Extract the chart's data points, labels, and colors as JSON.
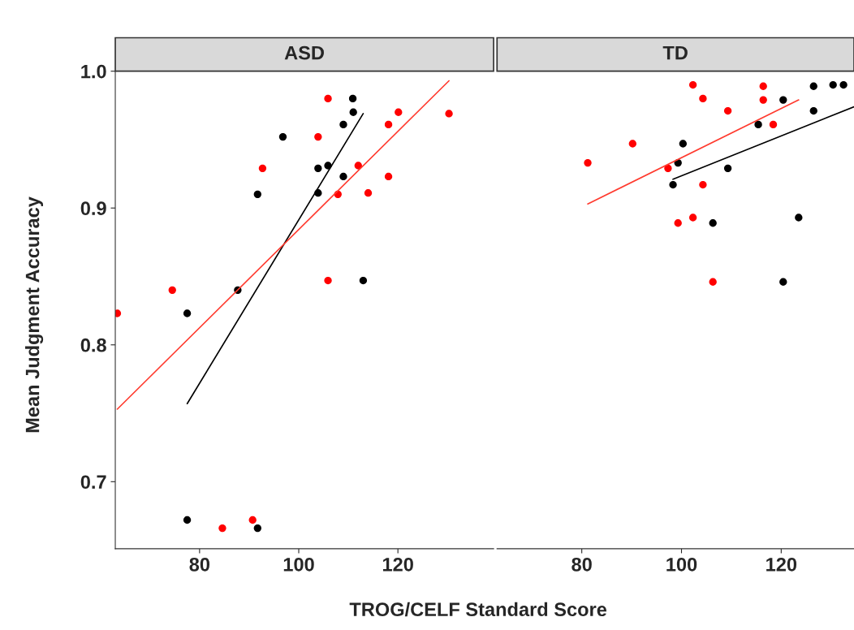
{
  "chart_data": [
    {
      "type": "scatter",
      "title": "ASD",
      "ylabel": "Mean Judgment Accuracy",
      "xlabel": "TROG/CELF Standard Score",
      "xlim": [
        63,
        139.3
      ],
      "ylim": [
        0.651,
        1.0
      ],
      "xticks": [
        80,
        100,
        120
      ],
      "yticks": [
        0.7,
        0.8,
        0.9,
        {
          "value": 1.0,
          "label": "1.0"
        }
      ],
      "grid": false,
      "legend": false,
      "series": [
        {
          "color": "#000000",
          "marker": "circle",
          "x": [
            110.9,
            111,
            109,
            96.8,
            103.9,
            105.9,
            109,
            91.7,
            103.9,
            113,
            87.7,
            77.5,
            77.5,
            91.7
          ],
          "values": [
            0.98,
            0.97,
            0.961,
            0.952,
            0.929,
            0.931,
            0.923,
            0.91,
            0.911,
            0.847,
            0.84,
            0.823,
            0.672,
            0.666
          ]
        },
        {
          "color": "#ff0000",
          "marker": "circle",
          "x": [
            105.9,
            120.1,
            130.3,
            118.1,
            103.9,
            92.7,
            112,
            118.1,
            107.9,
            114,
            105.9,
            74.5,
            63.4,
            84.6,
            90.7
          ],
          "values": [
            0.98,
            0.97,
            0.969,
            0.961,
            0.952,
            0.929,
            0.931,
            0.923,
            0.91,
            0.911,
            0.847,
            0.84,
            0.823,
            0.666,
            0.672
          ]
        },
        {
          "type": "line",
          "color": "#000000",
          "x": [
            77.5,
            113
          ],
          "values": [
            0.757,
            0.969
          ]
        },
        {
          "type": "line",
          "color": "#ff3b2f",
          "x": [
            63.4,
            130.3
          ],
          "values": [
            0.753,
            0.993
          ]
        }
      ]
    },
    {
      "type": "scatter",
      "title": "TD",
      "xlim": [
        63,
        134.6
      ],
      "ylim": [
        0.651,
        1.0
      ],
      "xticks": [
        80,
        100,
        120
      ],
      "tick_labels": "x",
      "grid": false,
      "legend": false,
      "series": [
        {
          "color": "#000000",
          "marker": "circle",
          "x": [
            126.5,
            130.4,
            132.5,
            120.4,
            126.5,
            115.4,
            100.3,
            99.3,
            109.3,
            98.3,
            106.3,
            123.5,
            120.4
          ],
          "values": [
            0.989,
            0.99,
            0.99,
            0.979,
            0.971,
            0.961,
            0.947,
            0.933,
            0.929,
            0.917,
            0.889,
            0.893,
            0.846
          ]
        },
        {
          "color": "#ff0000",
          "marker": "circle",
          "x": [
            102.3,
            116.4,
            104.3,
            116.4,
            109.3,
            118.4,
            90.2,
            81.2,
            97.3,
            104.3,
            102.3,
            99.3,
            106.3
          ],
          "values": [
            0.99,
            0.989,
            0.98,
            0.979,
            0.971,
            0.961,
            0.947,
            0.933,
            0.929,
            0.917,
            0.893,
            0.889,
            0.846
          ]
        },
        {
          "type": "line",
          "color": "#000000",
          "x": [
            98.3,
            134.6
          ],
          "values": [
            0.921,
            0.974
          ]
        },
        {
          "type": "line",
          "color": "#ff3b2f",
          "x": [
            81.2,
            123.5
          ],
          "values": [
            0.903,
            0.979
          ]
        }
      ]
    }
  ]
}
